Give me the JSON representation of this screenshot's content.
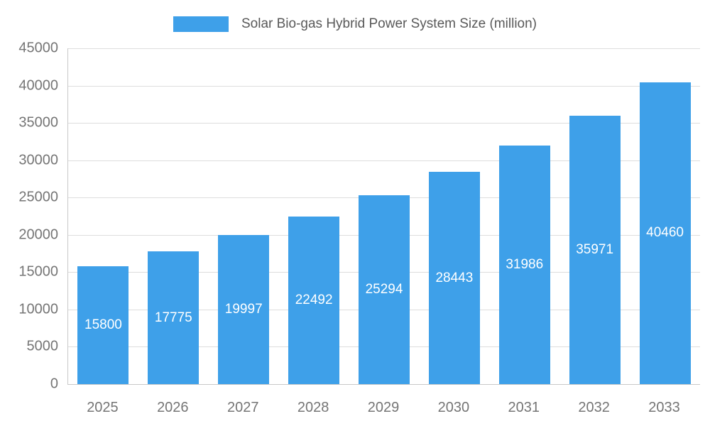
{
  "chart_data": {
    "type": "bar",
    "title": "Solar Bio-gas Hybrid Power System Size (million)",
    "categories": [
      "2025",
      "2026",
      "2027",
      "2028",
      "2029",
      "2030",
      "2031",
      "2032",
      "2033"
    ],
    "values": [
      15800,
      17775,
      19997,
      22492,
      25294,
      28443,
      31986,
      35971,
      40460
    ],
    "xlabel": "",
    "ylabel": "",
    "ylim": [
      0,
      45000
    ],
    "yticks": [
      0,
      5000,
      10000,
      15000,
      20000,
      25000,
      30000,
      35000,
      40000,
      45000
    ],
    "grid": true,
    "legend_position": "top",
    "colors": {
      "bar": "#3ea0e9",
      "bar_label_text": "#ffffff",
      "axis_text": "#757575",
      "legend_text": "#595959",
      "gridline": "#dddddd",
      "axis_line": "#c9c9c9"
    }
  }
}
